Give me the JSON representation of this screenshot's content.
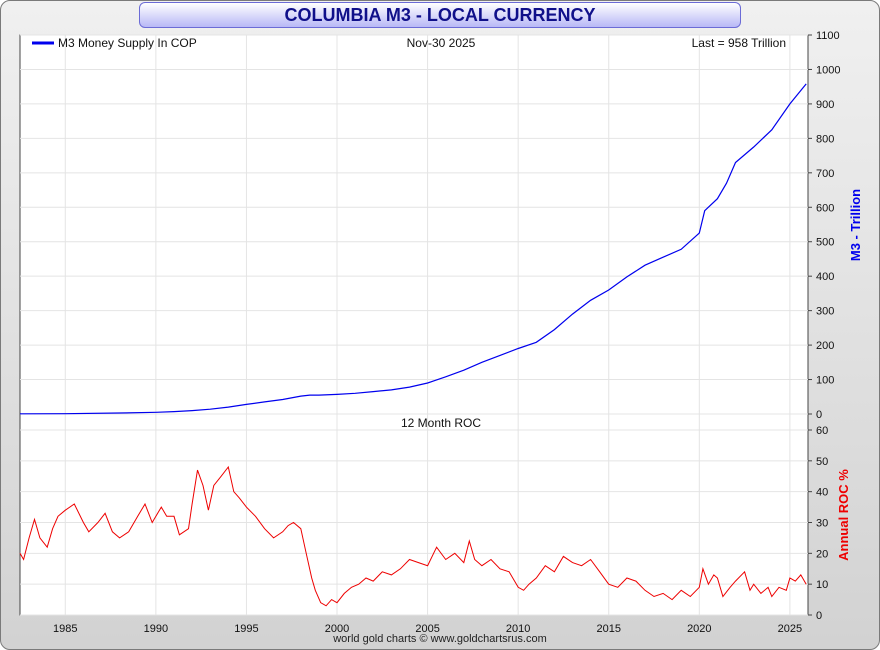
{
  "title": "COLUMBIA M3 - LOCAL CURRENCY",
  "footer": "world gold charts © www.goldchartsrus.com",
  "colors": {
    "m3_line": "#0000ee",
    "roc_line": "#ee0000",
    "title_text": "#10108a"
  },
  "chart_data": [
    {
      "type": "line",
      "legend": "M3 Money Supply In COP",
      "date_label": "Nov-30  2025",
      "last_label": "Last = 958 Trillion",
      "ylabel": "M3 - Trillion",
      "ylim": [
        0,
        1100
      ],
      "yticks": [
        "0",
        "100",
        "200",
        "300",
        "400",
        "500",
        "600",
        "700",
        "800",
        "900",
        "1000",
        "1100"
      ],
      "grid": true,
      "series": [
        {
          "name": "M3 Money Supply In COP",
          "x": [
            1982.5,
            1985,
            1988,
            1990,
            1991,
            1992,
            1993,
            1994,
            1995,
            1996,
            1997,
            1998,
            1998.5,
            1999,
            2000,
            2001,
            2002,
            2003,
            2004,
            2005,
            2006,
            2007,
            2008,
            2009,
            2010,
            2011,
            2012,
            2013,
            2014,
            2015,
            2016,
            2017,
            2018,
            2019,
            2020,
            2020.3,
            2021,
            2021.5,
            2022,
            2023,
            2024,
            2025,
            2025.9
          ],
          "values": [
            0.5,
            1,
            3,
            5,
            7,
            10,
            14,
            20,
            28,
            35,
            42,
            52,
            55,
            55,
            57,
            60,
            65,
            70,
            78,
            90,
            108,
            127,
            150,
            170,
            190,
            208,
            245,
            290,
            330,
            360,
            398,
            432,
            455,
            478,
            525,
            590,
            625,
            670,
            730,
            775,
            825,
            900,
            958
          ]
        }
      ]
    },
    {
      "type": "line",
      "title": "12 Month ROC",
      "ylabel": "Annual ROC %",
      "ylim": [
        0,
        60
      ],
      "yticks": [
        "0",
        "10",
        "20",
        "30",
        "40",
        "50",
        "60"
      ],
      "xlim": [
        1982.5,
        2026
      ],
      "xticks": [
        "1985",
        "1990",
        "1995",
        "2000",
        "2005",
        "2010",
        "2015",
        "2020",
        "2025"
      ],
      "grid": true,
      "series": [
        {
          "name": "Annual ROC %",
          "x": [
            1982.5,
            1982.7,
            1983,
            1983.3,
            1983.6,
            1984,
            1984.3,
            1984.6,
            1985,
            1985.5,
            1986,
            1986.3,
            1986.8,
            1987.2,
            1987.6,
            1988,
            1988.5,
            1989,
            1989.4,
            1989.8,
            1990.3,
            1990.6,
            1991,
            1991.3,
            1991.8,
            1992,
            1992.3,
            1992.6,
            1992.9,
            1993.2,
            1993.6,
            1994,
            1994.3,
            1994.6,
            1995,
            1995.5,
            1996,
            1996.5,
            1997,
            1997.3,
            1997.6,
            1998,
            1998.3,
            1998.6,
            1998.8,
            1999.1,
            1999.4,
            1999.7,
            2000,
            2000.4,
            2000.8,
            2001.2,
            2001.6,
            2002,
            2002.5,
            2003,
            2003.5,
            2004,
            2004.5,
            2005,
            2005.5,
            2006,
            2006.5,
            2007,
            2007.3,
            2007.6,
            2008,
            2008.5,
            2009,
            2009.5,
            2010,
            2010.3,
            2010.6,
            2011,
            2011.5,
            2012,
            2012.5,
            2013,
            2013.5,
            2014,
            2014.5,
            2015,
            2015.5,
            2016,
            2016.5,
            2017,
            2017.5,
            2018,
            2018.5,
            2019,
            2019.5,
            2020,
            2020.2,
            2020.5,
            2020.8,
            2021,
            2021.3,
            2021.7,
            2022,
            2022.5,
            2022.8,
            2023,
            2023.4,
            2023.8,
            2024,
            2024.4,
            2024.8,
            2025,
            2025.3,
            2025.6,
            2025.9
          ],
          "values": [
            20,
            18,
            25,
            31,
            25,
            22,
            28,
            32,
            34,
            36,
            30,
            27,
            30,
            33,
            27,
            25,
            27,
            32,
            36,
            30,
            35,
            32,
            32,
            26,
            28,
            36,
            47,
            42,
            34,
            42,
            45,
            48,
            40,
            38,
            35,
            32,
            28,
            25,
            27,
            29,
            30,
            28,
            20,
            12,
            8,
            4,
            3,
            5,
            4,
            7,
            9,
            10,
            12,
            11,
            14,
            13,
            15,
            18,
            17,
            16,
            22,
            18,
            20,
            17,
            24,
            18,
            16,
            18,
            15,
            14,
            9,
            8,
            10,
            12,
            16,
            14,
            19,
            17,
            16,
            18,
            14,
            10,
            9,
            12,
            11,
            8,
            6,
            7,
            5,
            8,
            6,
            9,
            15,
            10,
            13,
            12,
            6,
            9,
            11,
            14,
            8,
            10,
            7,
            9,
            6,
            9,
            8,
            12,
            11,
            13,
            10
          ]
        }
      ]
    }
  ]
}
